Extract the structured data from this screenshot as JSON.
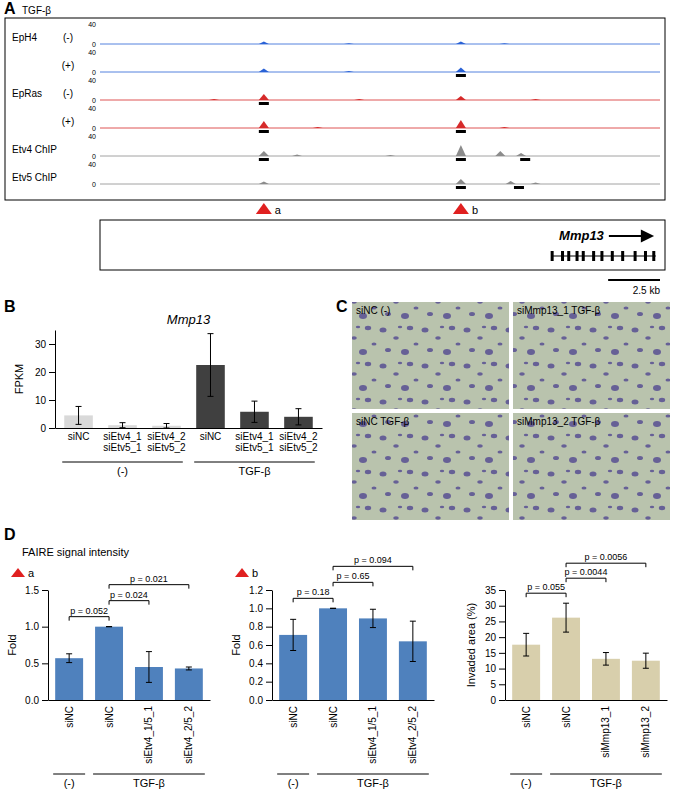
{
  "browser": {
    "panel": "A",
    "treatment_label": "TGF-β",
    "xlim": [
      0,
      27
    ],
    "tracks": [
      {
        "label": "EpH4",
        "condition": "(-)",
        "color": "#2a62d6",
        "ylim": [
          0,
          40
        ],
        "yticks": [
          0,
          40
        ],
        "peaks": [
          {
            "x": 7.9,
            "h": 5
          },
          {
            "x": 17.4,
            "h": 5
          },
          {
            "x": 12.0,
            "h": 1.5
          },
          {
            "x": 19.5,
            "h": 1.5
          }
        ],
        "peak_calls": []
      },
      {
        "condition": "(+)",
        "color": "#2a62d6",
        "ylim": [
          0,
          40
        ],
        "yticks": [
          0,
          40
        ],
        "peaks": [
          {
            "x": 7.9,
            "h": 7
          },
          {
            "x": 17.4,
            "h": 9
          },
          {
            "x": 12.0,
            "h": 2
          }
        ],
        "peak_calls": [
          17.4
        ]
      },
      {
        "label": "EpRas",
        "condition": "(-)",
        "color": "#d62a2a",
        "ylim": [
          0,
          40
        ],
        "yticks": [
          0,
          40
        ],
        "peaks": [
          {
            "x": 7.9,
            "h": 12
          },
          {
            "x": 17.4,
            "h": 8
          },
          {
            "x": 5.5,
            "h": 2
          },
          {
            "x": 12.5,
            "h": 2
          },
          {
            "x": 21.0,
            "h": 2
          }
        ],
        "peak_calls": [
          7.9
        ]
      },
      {
        "condition": "(+)",
        "color": "#d62a2a",
        "ylim": [
          0,
          40
        ],
        "yticks": [
          0,
          40
        ],
        "peaks": [
          {
            "x": 7.9,
            "h": 14
          },
          {
            "x": 17.4,
            "h": 16
          },
          {
            "x": 10.5,
            "h": 2
          },
          {
            "x": 19.5,
            "h": 2
          }
        ],
        "peak_calls": [
          7.9,
          17.4
        ]
      },
      {
        "label": "Etv4 ChIP",
        "color": "#8c8c8c",
        "ylim": [
          0,
          40
        ],
        "yticks": [
          0,
          40
        ],
        "peaks": [
          {
            "x": 7.9,
            "h": 10
          },
          {
            "x": 17.4,
            "h": 22
          },
          {
            "x": 19.3,
            "h": 10
          },
          {
            "x": 20.3,
            "h": 6
          },
          {
            "x": 9.5,
            "h": 3
          },
          {
            "x": 14.0,
            "h": 2
          }
        ],
        "peak_calls": [
          7.9,
          17.4,
          20.5
        ]
      },
      {
        "label": "Etv5 ChIP",
        "color": "#8c8c8c",
        "ylim": [
          0,
          40
        ],
        "yticks": [
          0,
          40
        ],
        "peaks": [
          {
            "x": 7.9,
            "h": 5
          },
          {
            "x": 17.4,
            "h": 10
          },
          {
            "x": 19.8,
            "h": 6
          },
          {
            "x": 21.0,
            "h": 3
          }
        ],
        "peak_calls": [
          17.4,
          20.2
        ]
      }
    ],
    "regions": [
      {
        "label": "a",
        "x": 7.9
      },
      {
        "label": "b",
        "x": 17.4
      }
    ],
    "gene": {
      "name": "Mmp13",
      "start": 21.8,
      "end": 26.8,
      "exons": [
        21.8,
        22.3,
        22.6,
        23.0,
        23.3,
        23.8,
        24.2,
        24.7,
        25.2,
        25.8,
        26.3,
        26.7
      ]
    },
    "scale_bar": {
      "value": 2.5,
      "label": "2.5 kb"
    }
  },
  "images": {
    "panel": "C",
    "items": [
      {
        "label": "siNC (-)"
      },
      {
        "label": "siMmp13_1 TGF-β"
      },
      {
        "label": "siNC TGF-β"
      },
      {
        "label": "siMmp13_2 TGF-β"
      }
    ]
  },
  "panel_d": {
    "panel": "D",
    "heading": "FAIRE signal intensity"
  },
  "chart_data": [
    {
      "panel": "B",
      "type": "bar",
      "title": "Mmp13",
      "y_label": "FPKM",
      "categories": [
        "siNC",
        [
          "siEtv4_1",
          "siEtv5_1"
        ],
        [
          "siEtv4_2",
          "siEtv5_2"
        ],
        "siNC",
        [
          "siEtv4_1",
          "siEtv5_1"
        ],
        [
          "siEtv4_2",
          "siEtv5_2"
        ]
      ],
      "values": [
        4.5,
        1.0,
        0.8,
        22.5,
        5.8,
        4.0
      ],
      "errors": [
        3.2,
        0.9,
        0.8,
        11.2,
        3.8,
        2.9
      ],
      "colors": [
        "#d9d9d9",
        "#d9d9d9",
        "#d9d9d9",
        "#404040",
        "#404040",
        "#404040"
      ],
      "ylim": [
        0,
        35
      ],
      "yticks": [
        0,
        10,
        20,
        30
      ],
      "groups": [
        {
          "label": "(-)",
          "span": [
            0,
            2
          ]
        },
        {
          "label": "TGF-β",
          "span": [
            3,
            5
          ]
        }
      ]
    },
    {
      "region": "a",
      "type": "bar",
      "y_label": "Fold",
      "categories": [
        "siNC",
        "siNC",
        "siEtv4_1/5_1",
        "siEtv4_2/5_2"
      ],
      "values": [
        0.57,
        1.0,
        0.45,
        0.43
      ],
      "errors": [
        0.06,
        0.0,
        0.21,
        0.02
      ],
      "color": "#4f81bd",
      "ylim": [
        0,
        1.5
      ],
      "yticks": [
        {
          "value": 0,
          "label": "0.0"
        },
        0.5,
        {
          "value": 1,
          "label": "1.0"
        },
        1.5
      ],
      "groups": [
        {
          "label": "(-)",
          "span": [
            0,
            0
          ]
        },
        {
          "label": "TGF-β",
          "span": [
            1,
            3
          ]
        }
      ],
      "comparisons": [
        {
          "label": "p = 0.052",
          "pair": [
            0,
            1
          ]
        },
        {
          "label": "p = 0.024",
          "pair": [
            1,
            2
          ]
        },
        {
          "label": "p = 0.021",
          "pair": [
            1,
            3
          ]
        }
      ]
    },
    {
      "region": "b",
      "type": "bar",
      "y_label": "Fold",
      "categories": [
        "siNC",
        "siNC",
        "siEtv4_1/5_1",
        "siEtv4_2/5_2"
      ],
      "values": [
        0.71,
        1.0,
        0.89,
        0.64
      ],
      "errors": [
        0.17,
        0.0,
        0.1,
        0.22
      ],
      "color": "#4f81bd",
      "ylim": [
        0,
        1.2
      ],
      "yticks": [
        {
          "value": 0,
          "label": "0.0"
        },
        0.2,
        0.4,
        0.6,
        0.8,
        {
          "value": 1,
          "label": "1.0"
        },
        1.2
      ],
      "groups": [
        {
          "label": "(-)",
          "span": [
            0,
            0
          ]
        },
        {
          "label": "TGF-β",
          "span": [
            1,
            3
          ]
        }
      ],
      "comparisons": [
        {
          "label": "p = 0.18",
          "pair": [
            0,
            1
          ]
        },
        {
          "label": "p = 0.65",
          "pair": [
            1,
            2
          ]
        },
        {
          "label": "p = 0.094",
          "pair": [
            1,
            3
          ]
        }
      ]
    },
    {
      "type": "bar",
      "y_label": "Invaded area (%)",
      "categories": [
        "siNC",
        "siNC",
        "siMmp13_1",
        "siMmp13_2"
      ],
      "values": [
        17.6,
        26.2,
        13.1,
        12.5
      ],
      "errors": [
        3.6,
        4.6,
        2.0,
        2.4
      ],
      "color": "#d8cfac",
      "ylim": [
        0,
        35
      ],
      "yticks": [
        0,
        5,
        10,
        15,
        20,
        25,
        30,
        35
      ],
      "groups": [
        {
          "label": "(-)",
          "span": [
            0,
            0
          ]
        },
        {
          "label": "TGF-β",
          "span": [
            1,
            3
          ]
        }
      ],
      "comparisons": [
        {
          "label": "p = 0.055",
          "pair": [
            0,
            1
          ]
        },
        {
          "label": "p = 0.0044",
          "pair": [
            1,
            2
          ]
        },
        {
          "label": "p = 0.0056",
          "pair": [
            1,
            3
          ]
        }
      ]
    }
  ]
}
